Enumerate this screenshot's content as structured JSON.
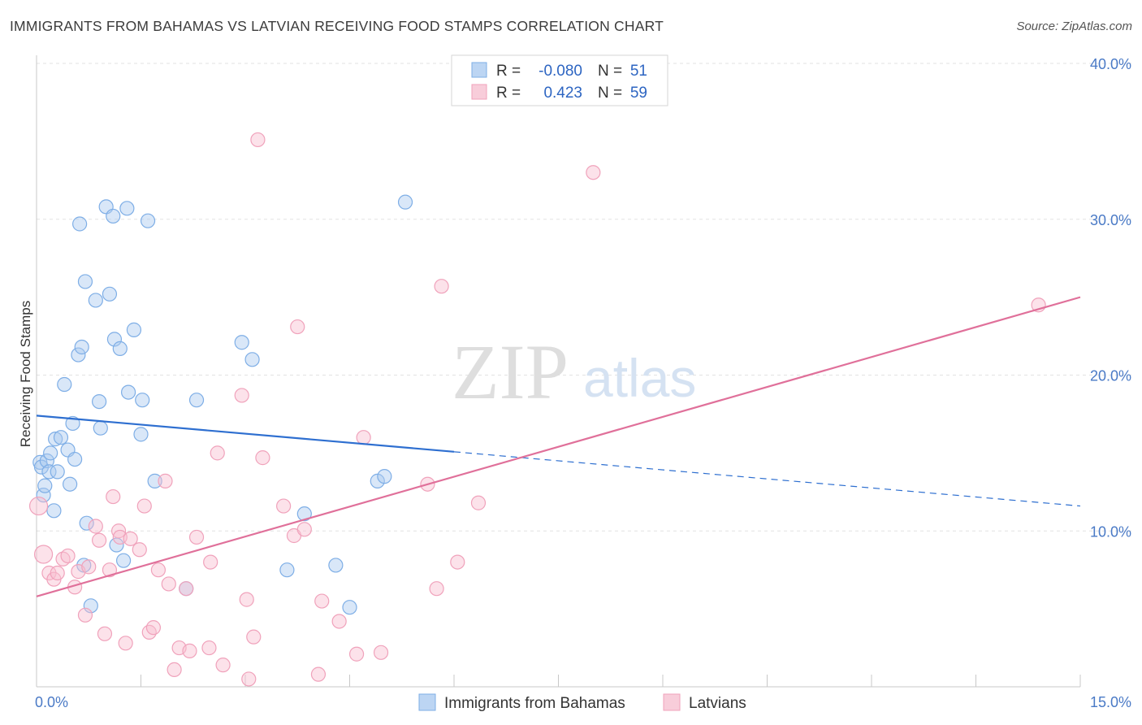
{
  "title": "IMMIGRANTS FROM BAHAMAS VS LATVIAN RECEIVING FOOD STAMPS CORRELATION CHART",
  "source": "Source: ZipAtlas.com",
  "watermark": {
    "zip": "ZIP",
    "atlas": "atlas"
  },
  "legend": {
    "rows": [
      {
        "r_label": "R =",
        "r_value": "-0.080",
        "n_label": "N =",
        "n_value": "51"
      },
      {
        "r_label": "R =",
        "r_value": "0.423",
        "n_label": "N =",
        "n_value": "59"
      }
    ]
  },
  "bottom_legend": [
    "Immigrants from Bahamas",
    "Latvians"
  ],
  "colors": {
    "blue": "#7eaee6",
    "blue_line": "#2e6fd0",
    "pink": "#f0a2bb",
    "pink_line": "#e0709a"
  },
  "chart_data": {
    "type": "scatter",
    "title": "IMMIGRANTS FROM BAHAMAS VS LATVIAN RECEIVING FOOD STAMPS CORRELATION CHART",
    "xlabel": "",
    "ylabel": "Receiving Food Stamps",
    "xlim": [
      0,
      15
    ],
    "ylim": [
      0,
      40
    ],
    "x_tick_labels": [
      "0.0%",
      "15.0%"
    ],
    "y_ticks": [
      10,
      20,
      30,
      40
    ],
    "y_tick_labels": [
      "10.0%",
      "20.0%",
      "30.0%",
      "40.0%"
    ],
    "grid": true,
    "series": [
      {
        "name": "Immigrants from Bahamas",
        "R": -0.08,
        "N": 51,
        "trend": {
          "x0": 0,
          "y0": 17.4,
          "x1": 15,
          "y1": 11.6,
          "solid_until": 6
        },
        "points": [
          [
            0.05,
            14.4
          ],
          [
            0.07,
            14.1
          ],
          [
            0.1,
            12.3
          ],
          [
            0.12,
            12.9
          ],
          [
            0.15,
            14.5
          ],
          [
            0.18,
            13.8
          ],
          [
            0.2,
            15.0
          ],
          [
            0.25,
            11.3
          ],
          [
            0.27,
            15.9
          ],
          [
            0.3,
            13.8
          ],
          [
            0.35,
            16.0
          ],
          [
            0.4,
            19.4
          ],
          [
            0.45,
            15.2
          ],
          [
            0.48,
            13.0
          ],
          [
            0.52,
            16.9
          ],
          [
            0.55,
            14.6
          ],
          [
            0.6,
            21.3
          ],
          [
            0.62,
            29.7
          ],
          [
            0.65,
            21.8
          ],
          [
            0.68,
            7.8
          ],
          [
            0.7,
            26.0
          ],
          [
            0.72,
            10.5
          ],
          [
            0.78,
            5.2
          ],
          [
            0.85,
            24.8
          ],
          [
            0.9,
            18.3
          ],
          [
            0.92,
            16.6
          ],
          [
            1.0,
            30.8
          ],
          [
            1.05,
            25.2
          ],
          [
            1.1,
            30.2
          ],
          [
            1.12,
            22.3
          ],
          [
            1.15,
            9.1
          ],
          [
            1.2,
            21.7
          ],
          [
            1.25,
            8.1
          ],
          [
            1.3,
            30.7
          ],
          [
            1.32,
            18.9
          ],
          [
            1.4,
            22.9
          ],
          [
            1.5,
            16.2
          ],
          [
            1.52,
            18.4
          ],
          [
            1.6,
            29.9
          ],
          [
            1.7,
            13.2
          ],
          [
            2.15,
            6.3
          ],
          [
            2.3,
            18.4
          ],
          [
            2.95,
            22.1
          ],
          [
            3.1,
            21.0
          ],
          [
            3.6,
            7.5
          ],
          [
            3.85,
            11.1
          ],
          [
            4.3,
            7.8
          ],
          [
            4.5,
            5.1
          ],
          [
            4.9,
            13.2
          ],
          [
            5.0,
            13.5
          ],
          [
            5.3,
            31.1
          ]
        ]
      },
      {
        "name": "Latvians",
        "R": 0.423,
        "N": 59,
        "trend": {
          "x0": 0,
          "y0": 5.8,
          "x1": 15,
          "y1": 25.0
        },
        "points": [
          [
            0.03,
            11.6
          ],
          [
            0.1,
            8.5
          ],
          [
            0.18,
            7.3
          ],
          [
            0.25,
            6.9
          ],
          [
            0.3,
            7.3
          ],
          [
            0.38,
            8.2
          ],
          [
            0.45,
            8.4
          ],
          [
            0.55,
            6.4
          ],
          [
            0.6,
            7.4
          ],
          [
            0.7,
            4.6
          ],
          [
            0.75,
            7.7
          ],
          [
            0.85,
            10.3
          ],
          [
            0.9,
            9.4
          ],
          [
            0.98,
            3.4
          ],
          [
            1.05,
            7.5
          ],
          [
            1.1,
            12.2
          ],
          [
            1.18,
            10.0
          ],
          [
            1.2,
            9.6
          ],
          [
            1.28,
            2.8
          ],
          [
            1.35,
            9.5
          ],
          [
            1.48,
            8.8
          ],
          [
            1.55,
            11.6
          ],
          [
            1.62,
            3.5
          ],
          [
            1.68,
            3.8
          ],
          [
            1.75,
            7.5
          ],
          [
            1.85,
            13.2
          ],
          [
            1.9,
            6.6
          ],
          [
            1.98,
            1.1
          ],
          [
            2.05,
            2.5
          ],
          [
            2.15,
            6.3
          ],
          [
            2.2,
            2.3
          ],
          [
            2.3,
            9.6
          ],
          [
            2.48,
            2.5
          ],
          [
            2.5,
            8.0
          ],
          [
            2.6,
            15.0
          ],
          [
            2.68,
            1.4
          ],
          [
            2.95,
            18.7
          ],
          [
            3.02,
            5.6
          ],
          [
            3.05,
            0.5
          ],
          [
            3.12,
            3.2
          ],
          [
            3.25,
            14.7
          ],
          [
            3.55,
            11.6
          ],
          [
            3.7,
            9.7
          ],
          [
            3.75,
            23.1
          ],
          [
            3.85,
            10.1
          ],
          [
            4.05,
            0.8
          ],
          [
            4.1,
            5.5
          ],
          [
            4.35,
            4.2
          ],
          [
            4.6,
            2.1
          ],
          [
            4.7,
            16.0
          ],
          [
            4.95,
            2.2
          ],
          [
            5.62,
            13.0
          ],
          [
            5.75,
            6.3
          ],
          [
            5.82,
            25.7
          ],
          [
            6.05,
            8.0
          ],
          [
            6.35,
            11.8
          ],
          [
            8.0,
            33.0
          ],
          [
            3.18,
            35.1
          ],
          [
            14.4,
            24.5
          ]
        ]
      }
    ]
  }
}
